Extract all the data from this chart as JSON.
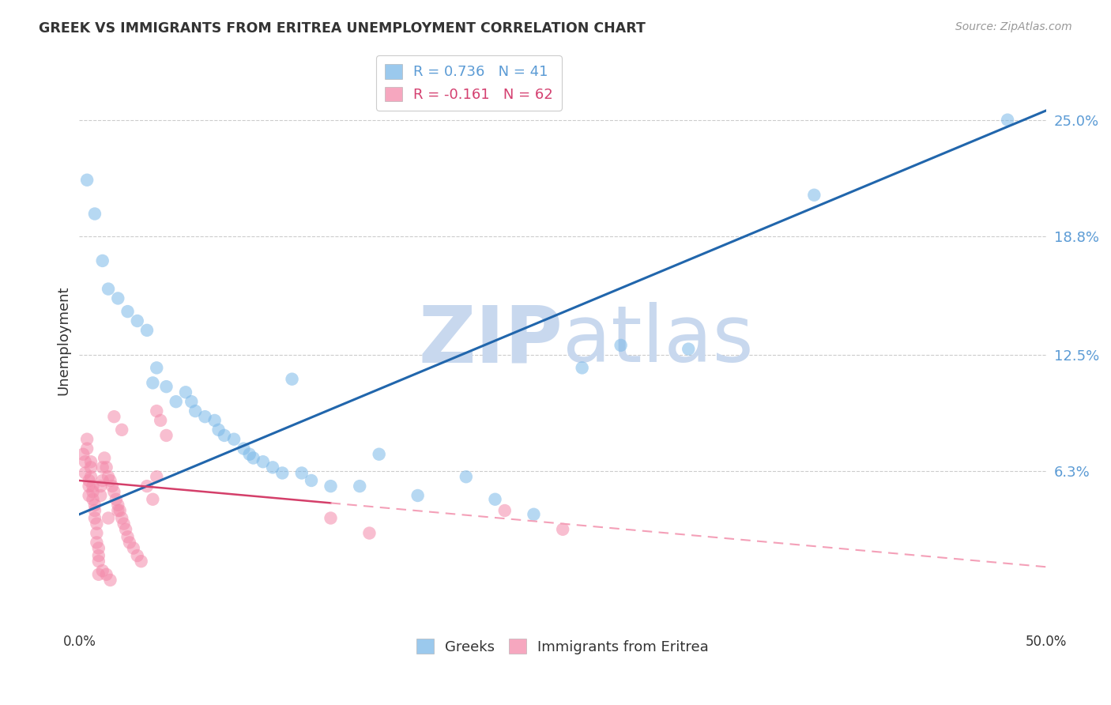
{
  "title": "GREEK VS IMMIGRANTS FROM ERITREA UNEMPLOYMENT CORRELATION CHART",
  "source": "Source: ZipAtlas.com",
  "ylabel": "Unemployment",
  "ytick_labels": [
    "25.0%",
    "18.8%",
    "12.5%",
    "6.3%"
  ],
  "ytick_values": [
    0.25,
    0.188,
    0.125,
    0.063
  ],
  "xlim": [
    0.0,
    0.5
  ],
  "ylim": [
    -0.02,
    0.285
  ],
  "legend_entry1": "R = 0.736   N = 41",
  "legend_entry2": "R = -0.161   N = 62",
  "legend_label1": "Greeks",
  "legend_label2": "Immigrants from Eritrea",
  "greek_color": "#7ab8e8",
  "eritrea_color": "#f48aaa",
  "greek_line_color": "#2166ac",
  "eritrea_line_solid_color": "#d43f6a",
  "eritrea_line_dashed_color": "#f4a0b8",
  "watermark_color": "#c8d8ee",
  "greek_points": [
    [
      0.004,
      0.218
    ],
    [
      0.008,
      0.2
    ],
    [
      0.012,
      0.175
    ],
    [
      0.015,
      0.16
    ],
    [
      0.02,
      0.155
    ],
    [
      0.025,
      0.148
    ],
    [
      0.03,
      0.143
    ],
    [
      0.035,
      0.138
    ],
    [
      0.038,
      0.11
    ],
    [
      0.04,
      0.118
    ],
    [
      0.045,
      0.108
    ],
    [
      0.05,
      0.1
    ],
    [
      0.055,
      0.105
    ],
    [
      0.058,
      0.1
    ],
    [
      0.06,
      0.095
    ],
    [
      0.065,
      0.092
    ],
    [
      0.07,
      0.09
    ],
    [
      0.072,
      0.085
    ],
    [
      0.075,
      0.082
    ],
    [
      0.08,
      0.08
    ],
    [
      0.085,
      0.075
    ],
    [
      0.088,
      0.072
    ],
    [
      0.09,
      0.07
    ],
    [
      0.095,
      0.068
    ],
    [
      0.1,
      0.065
    ],
    [
      0.105,
      0.062
    ],
    [
      0.11,
      0.112
    ],
    [
      0.115,
      0.062
    ],
    [
      0.12,
      0.058
    ],
    [
      0.13,
      0.055
    ],
    [
      0.145,
      0.055
    ],
    [
      0.155,
      0.072
    ],
    [
      0.175,
      0.05
    ],
    [
      0.2,
      0.06
    ],
    [
      0.215,
      0.048
    ],
    [
      0.235,
      0.04
    ],
    [
      0.26,
      0.118
    ],
    [
      0.28,
      0.13
    ],
    [
      0.315,
      0.128
    ],
    [
      0.38,
      0.21
    ],
    [
      0.48,
      0.25
    ]
  ],
  "eritrea_points": [
    [
      0.002,
      0.072
    ],
    [
      0.003,
      0.068
    ],
    [
      0.003,
      0.062
    ],
    [
      0.004,
      0.08
    ],
    [
      0.004,
      0.075
    ],
    [
      0.005,
      0.058
    ],
    [
      0.005,
      0.055
    ],
    [
      0.005,
      0.05
    ],
    [
      0.006,
      0.068
    ],
    [
      0.006,
      0.065
    ],
    [
      0.006,
      0.06
    ],
    [
      0.007,
      0.055
    ],
    [
      0.007,
      0.052
    ],
    [
      0.007,
      0.048
    ],
    [
      0.008,
      0.045
    ],
    [
      0.008,
      0.042
    ],
    [
      0.008,
      0.038
    ],
    [
      0.009,
      0.035
    ],
    [
      0.009,
      0.03
    ],
    [
      0.009,
      0.025
    ],
    [
      0.01,
      0.022
    ],
    [
      0.01,
      0.018
    ],
    [
      0.01,
      0.015
    ],
    [
      0.011,
      0.055
    ],
    [
      0.011,
      0.05
    ],
    [
      0.012,
      0.065
    ],
    [
      0.012,
      0.058
    ],
    [
      0.013,
      0.07
    ],
    [
      0.014,
      0.065
    ],
    [
      0.015,
      0.06
    ],
    [
      0.016,
      0.058
    ],
    [
      0.017,
      0.055
    ],
    [
      0.018,
      0.052
    ],
    [
      0.019,
      0.048
    ],
    [
      0.02,
      0.045
    ],
    [
      0.021,
      0.042
    ],
    [
      0.022,
      0.038
    ],
    [
      0.023,
      0.035
    ],
    [
      0.024,
      0.032
    ],
    [
      0.025,
      0.028
    ],
    [
      0.026,
      0.025
    ],
    [
      0.028,
      0.022
    ],
    [
      0.03,
      0.018
    ],
    [
      0.032,
      0.015
    ],
    [
      0.035,
      0.055
    ],
    [
      0.038,
      0.048
    ],
    [
      0.04,
      0.095
    ],
    [
      0.042,
      0.09
    ],
    [
      0.045,
      0.082
    ],
    [
      0.018,
      0.092
    ],
    [
      0.022,
      0.085
    ],
    [
      0.015,
      0.038
    ],
    [
      0.01,
      0.008
    ],
    [
      0.012,
      0.01
    ],
    [
      0.014,
      0.008
    ],
    [
      0.016,
      0.005
    ],
    [
      0.02,
      0.042
    ],
    [
      0.13,
      0.038
    ],
    [
      0.15,
      0.03
    ],
    [
      0.22,
      0.042
    ],
    [
      0.25,
      0.032
    ],
    [
      0.04,
      0.06
    ]
  ]
}
